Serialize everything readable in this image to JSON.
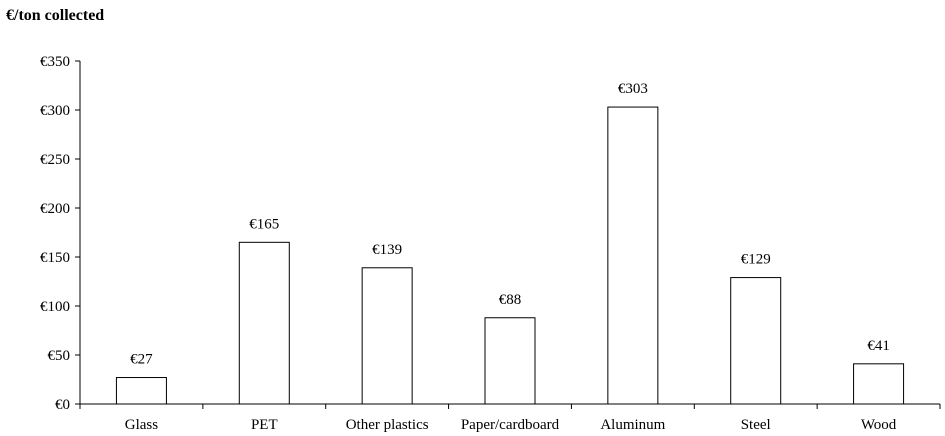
{
  "chart_data": {
    "type": "bar",
    "title": "€/ton collected",
    "xlabel": "",
    "ylabel": "",
    "categories": [
      "Glass",
      "PET",
      "Other plastics",
      "Paper/cardboard",
      "Aluminum",
      "Steel",
      "Wood"
    ],
    "values": [
      27,
      165,
      139,
      88,
      303,
      129,
      41
    ],
    "value_labels": [
      "€27",
      "€165",
      "€139",
      "€88",
      "€303",
      "€129",
      "€41"
    ],
    "ylim": [
      0,
      350
    ],
    "y_ticks": [
      0,
      50,
      100,
      150,
      200,
      250,
      300,
      350
    ],
    "y_tick_labels": [
      "€0",
      "€50",
      "€100",
      "€150",
      "€200",
      "€250",
      "€300",
      "€350"
    ],
    "grid": false,
    "legend": "none",
    "bar_fill": "#ffffff",
    "bar_stroke": "#000000"
  }
}
